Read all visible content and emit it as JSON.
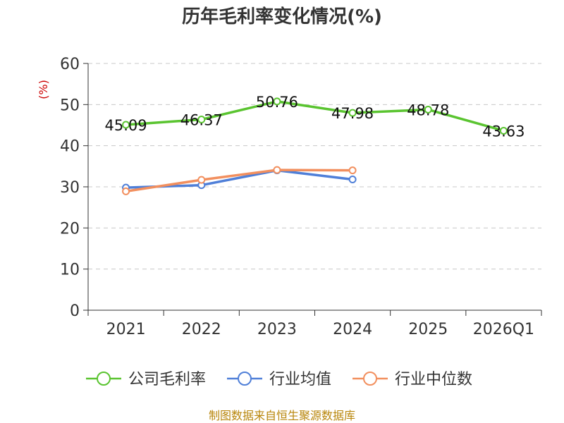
{
  "chart_data": {
    "type": "line",
    "title": "历年毛利率变化情况(%)",
    "ylabel": "(%)",
    "xlabel": "",
    "categories": [
      "2021",
      "2022",
      "2023",
      "2024",
      "2025",
      "2026Q1"
    ],
    "ylim": [
      0,
      60
    ],
    "yticks": [
      0,
      10,
      20,
      30,
      40,
      50,
      60
    ],
    "grid": true,
    "legend_position": "bottom",
    "series": [
      {
        "name": "公司毛利率",
        "color": "#5ac430",
        "values": [
          45.09,
          46.37,
          50.76,
          47.98,
          48.78,
          43.63
        ],
        "labels": [
          "45.09",
          "46.37",
          "50.76",
          "47.98",
          "48.78",
          "43.63"
        ]
      },
      {
        "name": "行业均值",
        "color": "#4f7fd8",
        "values": [
          29.8,
          30.4,
          34.0,
          31.8,
          null,
          null
        ]
      },
      {
        "name": "行业中位数",
        "color": "#f28f5e",
        "values": [
          28.9,
          31.7,
          34.1,
          34.0,
          null,
          null
        ]
      }
    ]
  },
  "source_text": "制图数据来自恒生聚源数据库"
}
